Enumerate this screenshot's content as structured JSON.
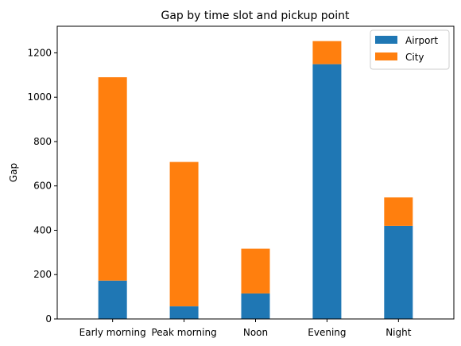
{
  "chart_data": {
    "type": "bar",
    "stacked": true,
    "title": "Gap by time slot and pickup point",
    "xlabel": "",
    "ylabel": "Gap",
    "categories": [
      "Early morning",
      "Peak morning",
      "Noon",
      "Evening",
      "Night"
    ],
    "series": [
      {
        "name": "Airport",
        "values": [
          173,
          57,
          115,
          1149,
          420
        ],
        "color": "#1f77b4"
      },
      {
        "name": "City",
        "values": [
          917,
          651,
          202,
          104,
          128
        ],
        "color": "#ff7f0e"
      }
    ],
    "ylim": [
      0,
      1320
    ],
    "yticks": [
      0,
      200,
      400,
      600,
      800,
      1000,
      1200
    ],
    "grid": false,
    "legend_position": "top-right"
  }
}
